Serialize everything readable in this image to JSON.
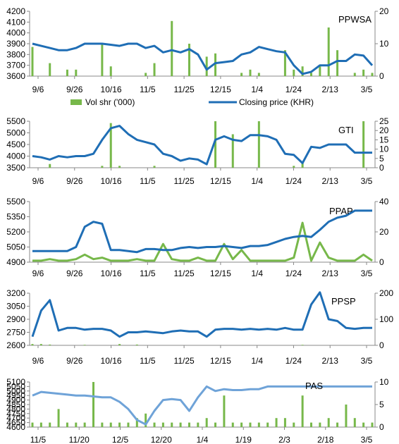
{
  "legend": {
    "volume_label": "Vol shr ('000)",
    "price_label": "Closing price (KHR)",
    "volume_color": "#77b84a",
    "price_color": "#1f6eb5"
  },
  "chart_data": [
    {
      "type": "bar+line",
      "title": "PPWSA",
      "x_ticks": [
        "9/6",
        "9/26",
        "10/16",
        "11/5",
        "11/25",
        "12/15",
        "1/4",
        "1/24",
        "2/13",
        "3/5"
      ],
      "y_left": {
        "min": 3600,
        "max": 4200,
        "ticks": [
          3600,
          3700,
          3800,
          3900,
          4000,
          4100,
          4200
        ]
      },
      "y_right": {
        "min": 0,
        "max": 20,
        "ticks": [
          0,
          10,
          20
        ]
      },
      "series": [
        {
          "name": "Closing price (KHR)",
          "axis": "left",
          "kind": "line",
          "values": [
            3900,
            3880,
            3860,
            3840,
            3840,
            3860,
            3900,
            3900,
            3900,
            3890,
            3880,
            3900,
            3900,
            3860,
            3880,
            3820,
            3840,
            3820,
            3850,
            3800,
            3660,
            3720,
            3730,
            3740,
            3800,
            3820,
            3870,
            3850,
            3830,
            3820,
            3700,
            3620,
            3640,
            3700,
            3700,
            3740,
            3740,
            3800,
            3790,
            3700
          ]
        },
        {
          "name": "Vol shr ('000)",
          "axis": "right",
          "kind": "bar",
          "values": [
            9,
            0,
            4,
            0,
            2,
            2,
            0,
            0,
            10,
            3,
            0,
            0,
            0,
            1,
            4,
            0,
            17,
            0,
            10,
            0,
            6,
            7,
            0,
            0,
            1,
            2,
            1,
            0,
            0,
            8,
            2,
            3,
            1,
            3,
            15,
            8,
            0,
            1,
            2,
            1
          ]
        }
      ]
    },
    {
      "type": "bar+line",
      "title": "GTI",
      "x_ticks": [
        "9/6",
        "9/26",
        "10/16",
        "11/5",
        "11/25",
        "12/15",
        "1/4",
        "1/24",
        "2/13",
        "3/5"
      ],
      "y_left": {
        "min": 3500,
        "max": 5500,
        "ticks": [
          3500,
          4000,
          4500,
          5000,
          5500
        ]
      },
      "y_right": {
        "min": 0,
        "max": 25,
        "ticks": [
          0,
          5,
          10,
          15,
          20,
          25
        ]
      },
      "series": [
        {
          "name": "Closing price (KHR)",
          "axis": "left",
          "kind": "line",
          "values": [
            4000,
            3950,
            3850,
            4000,
            3950,
            4000,
            4000,
            4100,
            4700,
            5200,
            5300,
            4950,
            4700,
            4600,
            4500,
            4100,
            4000,
            3800,
            3900,
            3850,
            3650,
            4700,
            4850,
            4700,
            4650,
            4900,
            4900,
            4850,
            4700,
            4100,
            4050,
            3700,
            4400,
            4350,
            4500,
            4500,
            4500,
            4150,
            4150,
            4150
          ]
        },
        {
          "name": "Vol shr ('000)",
          "axis": "right",
          "kind": "bar",
          "values": [
            0,
            0,
            2,
            0,
            0,
            0,
            0,
            0,
            1,
            24,
            1,
            0,
            0,
            0,
            1,
            0,
            0,
            0,
            0,
            0,
            0,
            25,
            0,
            18,
            0,
            0,
            25,
            0,
            0,
            0,
            1,
            3,
            0,
            0,
            0,
            0,
            0,
            0,
            25,
            0
          ]
        }
      ]
    },
    {
      "type": "line",
      "title": "PPAP",
      "x_ticks": [
        "9/6",
        "9/26",
        "10/16",
        "11/5",
        "11/25",
        "12/15",
        "1/4",
        "1/24",
        "2/13",
        "3/5"
      ],
      "y_left": {
        "min": 4900,
        "max": 5500,
        "ticks": [
          4900,
          5050,
          5200,
          5350,
          5500
        ]
      },
      "y_right": {
        "min": 0,
        "max": 40,
        "ticks": [
          0,
          20,
          40
        ]
      },
      "series": [
        {
          "name": "Closing price (KHR)",
          "axis": "left",
          "kind": "line",
          "values": [
            5010,
            5010,
            5010,
            5010,
            5010,
            5050,
            5250,
            5300,
            5280,
            5020,
            5020,
            5010,
            5000,
            5030,
            5030,
            5020,
            5020,
            5040,
            5050,
            5040,
            5050,
            5050,
            5060,
            5050,
            5040,
            5060,
            5060,
            5070,
            5100,
            5130,
            5150,
            5160,
            5150,
            5220,
            5300,
            5340,
            5360,
            5410,
            5410,
            5410
          ]
        },
        {
          "name": "Vol shr ('000)",
          "axis": "right",
          "kind": "line",
          "values": [
            1,
            1,
            2,
            1,
            1,
            2,
            5,
            2,
            3,
            1,
            1,
            1,
            2,
            1,
            1,
            12,
            2,
            1,
            1,
            3,
            1,
            1,
            12,
            2,
            8,
            1,
            1,
            1,
            1,
            1,
            3,
            26,
            1,
            13,
            3,
            1,
            1,
            1,
            5,
            1
          ]
        }
      ]
    },
    {
      "type": "bar+line",
      "title": "PPSP",
      "x_ticks": [
        "9/6",
        "9/26",
        "10/16",
        "11/5",
        "11/25",
        "12/15",
        "1/4",
        "1/24",
        "2/13",
        "3/5"
      ],
      "y_left": {
        "min": 2600,
        "max": 3200,
        "ticks": [
          2600,
          2750,
          2900,
          3050,
          3200
        ]
      },
      "y_right": {
        "min": 0,
        "max": 200,
        "ticks": [
          0,
          100,
          200
        ]
      },
      "series": [
        {
          "name": "Closing price (KHR)",
          "axis": "left",
          "kind": "line",
          "values": [
            2700,
            3000,
            3120,
            2770,
            2800,
            2800,
            2780,
            2790,
            2790,
            2770,
            2700,
            2750,
            2750,
            2760,
            2750,
            2740,
            2760,
            2770,
            2760,
            2760,
            2700,
            2780,
            2790,
            2790,
            2780,
            2790,
            2780,
            2790,
            2780,
            2800,
            2780,
            2780,
            3070,
            3210,
            2900,
            2880,
            2800,
            2790,
            2800,
            2800
          ]
        },
        {
          "name": "Vol shr ('000)",
          "axis": "right",
          "kind": "bar",
          "values": [
            5,
            5,
            3,
            0,
            0,
            0,
            2,
            0,
            0,
            0,
            5,
            0,
            3,
            0,
            0,
            0,
            0,
            0,
            0,
            0,
            0,
            0,
            0,
            0,
            0,
            0,
            0,
            0,
            0,
            0,
            0,
            2,
            0,
            0,
            0,
            0,
            0,
            0,
            0,
            0
          ]
        }
      ]
    },
    {
      "type": "bar+line",
      "title": "PAS",
      "x_ticks": [
        "11/5",
        "11/20",
        "12/5",
        "12/20",
        "1/4",
        "1/19",
        "2/3",
        "2/18",
        "3/5"
      ],
      "y_left": {
        "min": 4600,
        "max": 5100,
        "ticks": [
          4600,
          4650,
          4700,
          4750,
          4800,
          4850,
          4900,
          4950,
          5000,
          5050,
          5100
        ]
      },
      "y_right": {
        "min": 0,
        "max": 10,
        "ticks": [
          0,
          5,
          10
        ]
      },
      "series": [
        {
          "name": "Closing price (KHR)",
          "axis": "left",
          "kind": "line",
          "values": [
            4950,
            4990,
            4980,
            4970,
            4960,
            4950,
            4950,
            4940,
            4930,
            4930,
            4880,
            4800,
            4680,
            4630,
            4780,
            4900,
            4910,
            4900,
            4780,
            4930,
            5050,
            5000,
            5020,
            5010,
            5010,
            5020,
            5020,
            5050,
            5050,
            5050,
            5050,
            5050,
            5050,
            5050,
            5050,
            5050,
            5050,
            5050,
            5050,
            5050
          ]
        },
        {
          "name": "Vol shr ('000)",
          "axis": "right",
          "kind": "bar",
          "values": [
            1,
            1,
            1,
            4,
            1,
            1,
            1,
            10,
            1,
            1,
            1,
            1,
            2,
            3,
            1,
            1,
            1,
            1,
            1,
            1,
            2,
            1,
            7,
            1,
            1,
            1,
            1,
            1,
            2,
            2,
            1,
            7,
            1,
            1,
            2,
            1,
            5,
            2,
            1,
            1
          ]
        }
      ]
    }
  ]
}
